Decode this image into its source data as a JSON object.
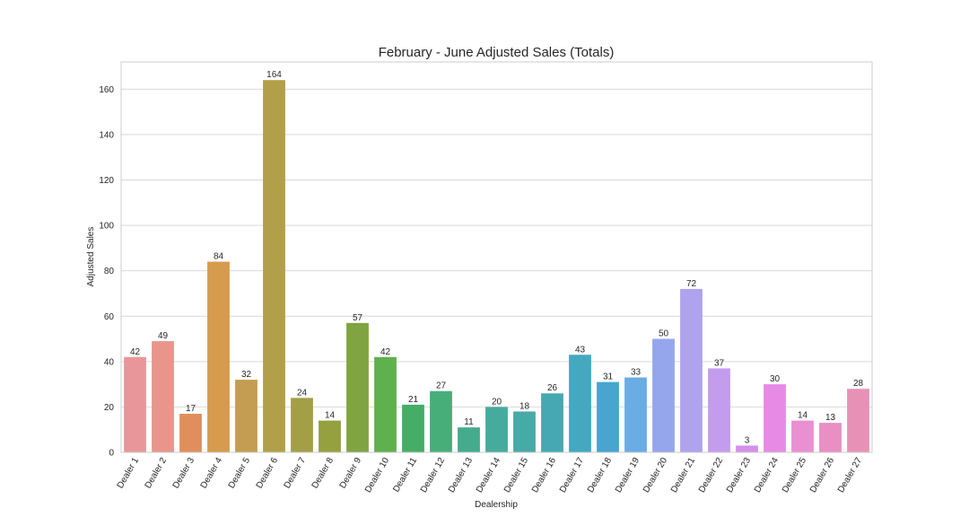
{
  "chart_data": {
    "type": "bar",
    "title": "February - June Adjusted Sales (Totals)",
    "xlabel": "Dealership",
    "ylabel": "Adjusted Sales",
    "ylim": [
      0,
      172
    ],
    "yticks": [
      0,
      20,
      40,
      60,
      80,
      100,
      120,
      140,
      160
    ],
    "grid": "horizontal",
    "categories": [
      "Dealer 1",
      "Dealer 2",
      "Dealer 3",
      "Dealer 4",
      "Dealer 5",
      "Dealer 6",
      "Dealer 7",
      "Dealer 8",
      "Dealer 9",
      "Dealer 10",
      "Dealer 11",
      "Dealer 12",
      "Dealer 13",
      "Dealer 14",
      "Dealer 15",
      "Dealer 16",
      "Dealer 17",
      "Dealer 18",
      "Dealer 19",
      "Dealer 20",
      "Dealer 21",
      "Dealer 22",
      "Dealer 23",
      "Dealer 24",
      "Dealer 25",
      "Dealer 26",
      "Dealer 27"
    ],
    "values": [
      42,
      49,
      17,
      84,
      32,
      164,
      24,
      14,
      57,
      42,
      21,
      27,
      11,
      20,
      18,
      26,
      43,
      31,
      33,
      50,
      72,
      37,
      3,
      30,
      14,
      13,
      28
    ],
    "colors": [
      "#e9969a",
      "#e8968b",
      "#e08e5c",
      "#d69b4c",
      "#c49d52",
      "#b19f49",
      "#a39f47",
      "#95a03f",
      "#80a442",
      "#5eb14c",
      "#45ad66",
      "#47ae79",
      "#45ab8d",
      "#46ab9c",
      "#46aaa6",
      "#46a8b2",
      "#44a8c1",
      "#47a5cf",
      "#6aace4",
      "#95a6ec",
      "#afa3ee",
      "#c39cee",
      "#d490ea",
      "#e78ae5",
      "#ea8fd2",
      "#e98fc3",
      "#e891b7"
    ]
  }
}
